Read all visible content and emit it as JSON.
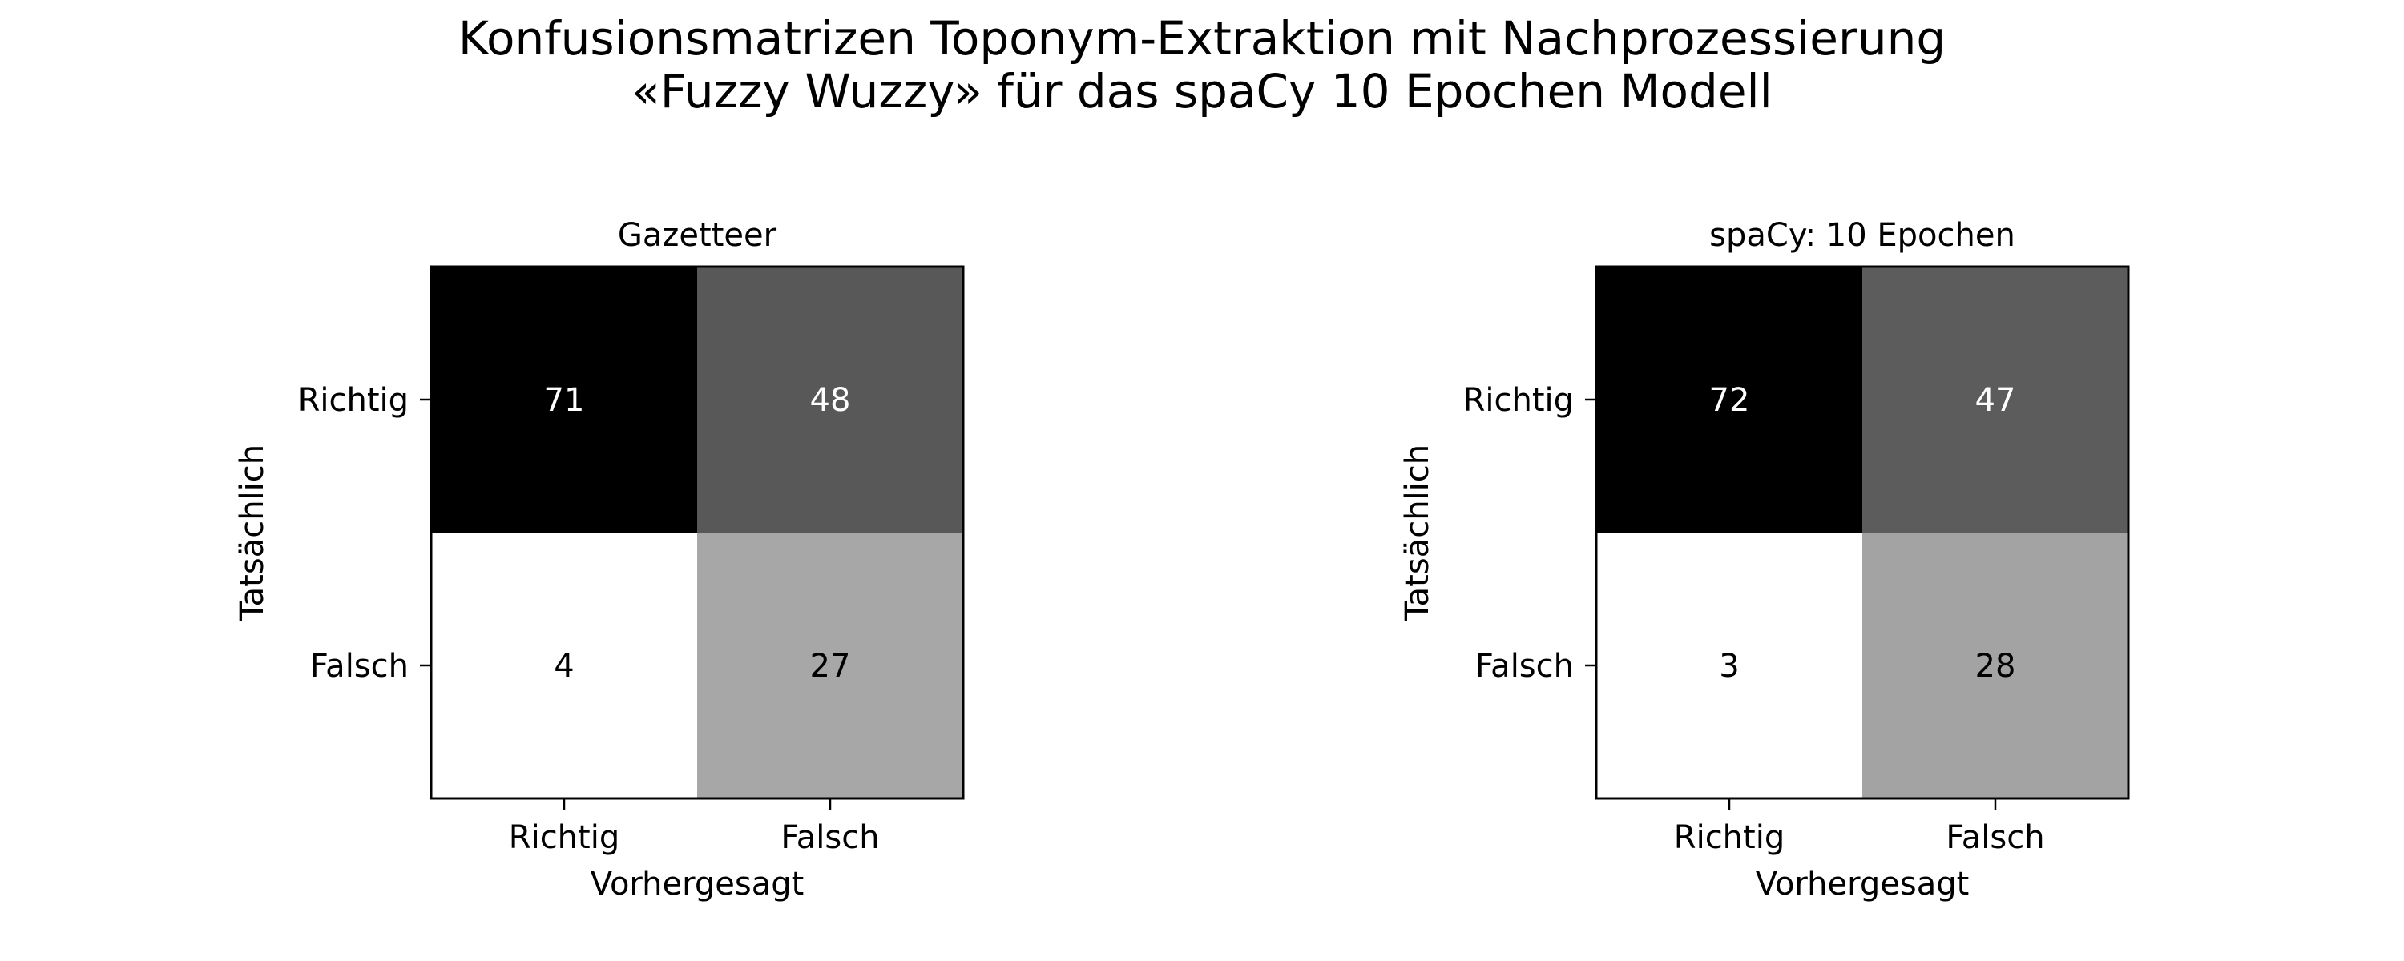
{
  "figure": {
    "title_line1": "Konfusionsmatrizen Toponym-Extraktion mit Nachprozessierung",
    "title_line2": "«Fuzzy Wuzzy» für das spaCy 10 Epochen Modell"
  },
  "chart_data": [
    {
      "type": "heatmap",
      "title": "Gazetteer",
      "xlabel": "Vorhergesagt",
      "ylabel": "Tatsächlich",
      "x_categories": [
        "Richtig",
        "Falsch"
      ],
      "y_categories": [
        "Richtig",
        "Falsch"
      ],
      "values": [
        [
          71,
          48
        ],
        [
          4,
          27
        ]
      ],
      "colormap": "gray_r",
      "legend": "none",
      "grid": false
    },
    {
      "type": "heatmap",
      "title": "spaCy: 10 Epochen",
      "xlabel": "Vorhergesagt",
      "ylabel": "Tatsächlich",
      "x_categories": [
        "Richtig",
        "Falsch"
      ],
      "y_categories": [
        "Richtig",
        "Falsch"
      ],
      "values": [
        [
          72,
          47
        ],
        [
          3,
          28
        ]
      ],
      "colormap": "gray_r",
      "legend": "none",
      "grid": false
    }
  ]
}
